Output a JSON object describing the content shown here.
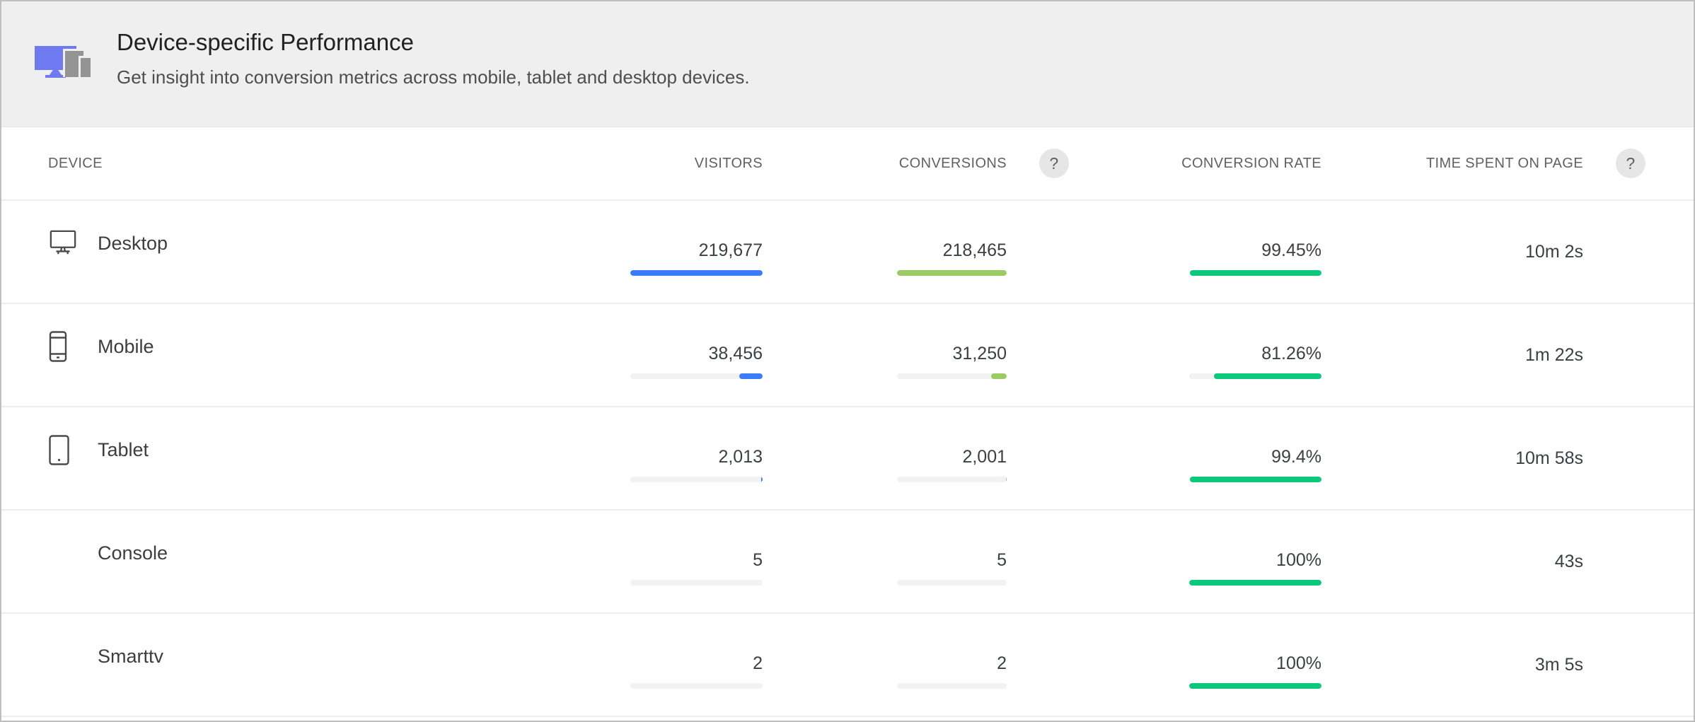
{
  "header": {
    "title": "Device-specific Performance",
    "subtitle": "Get insight into conversion metrics across mobile, tablet and desktop devices.",
    "icon": "devices-icon"
  },
  "help_badge_label": "?",
  "table": {
    "columns": [
      {
        "key": "device",
        "label": "DEVICE",
        "has_help": false
      },
      {
        "key": "visitors",
        "label": "VISITORS",
        "has_help": false
      },
      {
        "key": "conversions",
        "label": "CONVERSIONS",
        "has_help": true
      },
      {
        "key": "conversion_rate",
        "label": "CONVERSION RATE",
        "has_help": false
      },
      {
        "key": "time_on_page",
        "label": "TIME SPENT ON PAGE",
        "has_help": true
      }
    ],
    "rows": [
      {
        "device": "Desktop",
        "icon": "desktop-icon",
        "visitors": "219,677",
        "visitors_value": 219677,
        "visitors_bar_pct": 100,
        "conversions": "218,465",
        "conversions_value": 218465,
        "conversions_bar_pct": 100,
        "conversion_rate": "99.45%",
        "rate_bar_pct": 99.45,
        "time_on_page": "10m 2s"
      },
      {
        "device": "Mobile",
        "icon": "mobile-icon",
        "visitors": "38,456",
        "visitors_value": 38456,
        "visitors_bar_pct": 17.5,
        "conversions": "31,250",
        "conversions_value": 31250,
        "conversions_bar_pct": 14.3,
        "conversion_rate": "81.26%",
        "rate_bar_pct": 81.26,
        "time_on_page": "1m 22s"
      },
      {
        "device": "Tablet",
        "icon": "tablet-icon",
        "visitors": "2,013",
        "visitors_value": 2013,
        "visitors_bar_pct": 0.95,
        "conversions": "2,001",
        "conversions_value": 2001,
        "conversions_bar_pct": 0.95,
        "conversion_rate": "99.4%",
        "rate_bar_pct": 99.4,
        "time_on_page": "10m 58s"
      },
      {
        "device": "Console",
        "icon": null,
        "visitors": "5",
        "visitors_value": 5,
        "visitors_bar_pct": 0,
        "conversions": "5",
        "conversions_value": 5,
        "conversions_bar_pct": 0,
        "conversion_rate": "100%",
        "rate_bar_pct": 100,
        "time_on_page": "43s"
      },
      {
        "device": "Smarttv",
        "icon": null,
        "visitors": "2",
        "visitors_value": 2,
        "visitors_bar_pct": 0,
        "conversions": "2",
        "conversions_value": 2,
        "conversions_bar_pct": 0,
        "conversion_rate": "100%",
        "rate_bar_pct": 100,
        "time_on_page": "3m 5s"
      }
    ]
  },
  "colors": {
    "visitors_bar": "#3b7df6",
    "conversions_bar": "#9bcb63",
    "rate_bar": "#0bc87b",
    "bar_track": "#f2f2f2",
    "header_icon_blue": "#6f7af0",
    "header_icon_gray": "#949494"
  }
}
